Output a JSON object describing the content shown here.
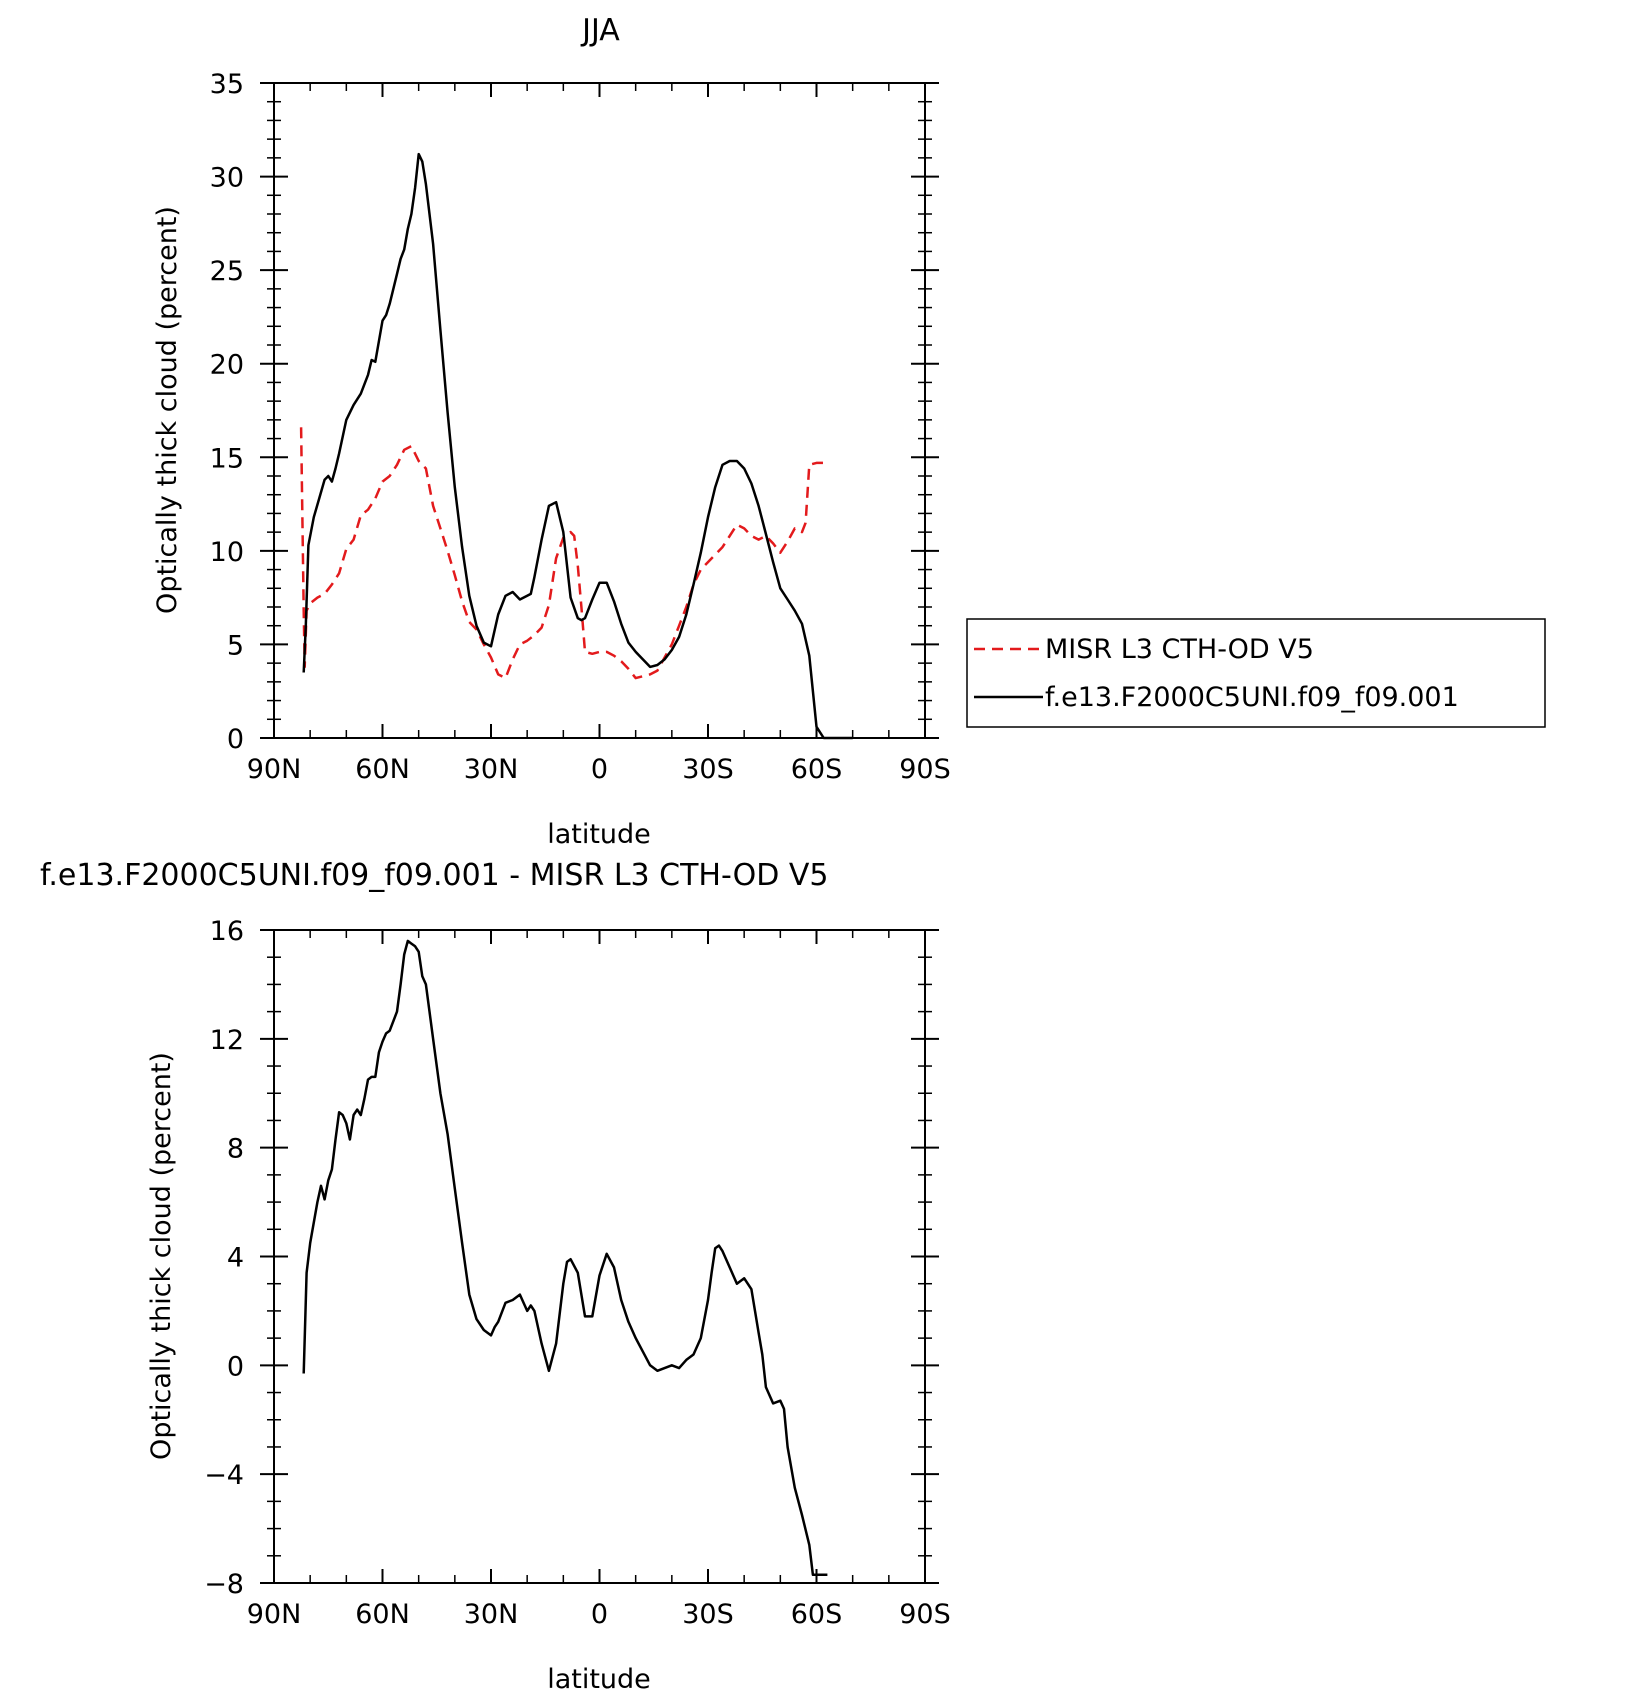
{
  "chart_data": [
    {
      "type": "line",
      "title": "JJA",
      "xlabel": "latitude",
      "ylabel": "Optically thick cloud (percent)",
      "xlim": [
        90,
        -90
      ],
      "ylim": [
        0,
        35
      ],
      "x_ticks": [
        90,
        60,
        30,
        0,
        -30,
        -60,
        -90
      ],
      "x_tick_labels": [
        "90N",
        "60N",
        "30N",
        "0",
        "30S",
        "60S",
        "90S"
      ],
      "y_ticks": [
        0,
        5,
        10,
        15,
        20,
        25,
        30,
        35
      ],
      "y_tick_labels": [
        "0",
        "5",
        "10",
        "15",
        "20",
        "25",
        "30",
        "35"
      ],
      "legend_position": "right",
      "series": [
        {
          "name": "MISR L3 CTH-OD V5",
          "color": "#e31a1c",
          "dash": "dashed",
          "x": [
            82.5,
            81.8,
            81.5,
            81,
            80,
            78,
            76,
            74,
            72,
            70,
            68,
            66,
            64,
            62,
            60,
            58,
            56,
            54,
            52,
            50,
            48,
            46,
            44,
            42,
            40,
            38,
            36,
            34,
            32,
            30,
            28,
            26,
            24,
            22,
            20,
            18,
            16,
            14,
            12,
            10,
            8,
            7,
            6,
            5,
            4,
            2,
            0,
            -2,
            -4,
            -6,
            -8,
            -10,
            -12,
            -14,
            -16,
            -18,
            -20,
            -22,
            -24,
            -26,
            -28,
            -30,
            -32,
            -34,
            -36,
            -38,
            -40,
            -42,
            -44,
            -46,
            -48,
            -50,
            -52,
            -54,
            -56,
            -57,
            -58,
            -60,
            -61,
            -62,
            -63
          ],
          "values": [
            16.6,
            6.8,
            3.8,
            6.8,
            7.2,
            7.5,
            7.7,
            8.2,
            8.8,
            10.1,
            10.6,
            11.9,
            12.2,
            12.8,
            13.7,
            14.0,
            14.6,
            15.4,
            15.6,
            14.8,
            14.4,
            12.4,
            11.2,
            10.0,
            8.7,
            7.3,
            6.2,
            5.8,
            5.0,
            4.3,
            3.4,
            3.2,
            4.2,
            5.0,
            5.2,
            5.5,
            5.9,
            7.1,
            9.6,
            10.7,
            11.0,
            10.8,
            9.2,
            7.0,
            4.6,
            4.5,
            4.6,
            4.6,
            4.4,
            4.1,
            3.7,
            3.2,
            3.3,
            3.4,
            3.6,
            4.3,
            5.0,
            6.0,
            7.0,
            8.2,
            9.0,
            9.4,
            9.8,
            10.2,
            10.8,
            11.4,
            11.2,
            10.8,
            10.6,
            10.8,
            10.4,
            9.9,
            10.5,
            11.2,
            11.0,
            11.5,
            14.6,
            14.7,
            14.7,
            14.7,
            14.7
          ]
        },
        {
          "name": "f.e13.F2000C5UNI.f09_f09.001",
          "color": "#000000",
          "dash": "solid",
          "x": [
            81.8,
            81.2,
            80.5,
            79,
            77.5,
            76,
            75,
            74,
            73,
            72,
            70,
            68,
            67,
            66,
            64,
            63,
            62,
            60,
            59,
            58,
            56,
            55,
            54,
            53,
            52,
            51,
            50,
            49,
            48,
            46,
            44,
            42,
            40,
            38,
            36,
            34,
            32,
            30,
            28,
            26,
            24,
            22,
            20,
            19,
            18,
            16,
            14,
            12,
            10,
            8,
            6,
            5,
            4,
            2,
            0,
            -2,
            -4,
            -6,
            -8,
            -10,
            -12,
            -14,
            -16,
            -18,
            -20,
            -22,
            -24,
            -26,
            -28,
            -30,
            -32,
            -34,
            -36,
            -38,
            -40,
            -42,
            -44,
            -46,
            -48,
            -50,
            -52,
            -54,
            -56,
            -58,
            -60,
            -62,
            -64,
            -66,
            -68,
            -70
          ],
          "values": [
            3.5,
            6.0,
            10.3,
            11.8,
            12.8,
            13.8,
            14.0,
            13.7,
            14.4,
            15.2,
            17.0,
            17.8,
            18.1,
            18.4,
            19.4,
            20.2,
            20.1,
            22.3,
            22.6,
            23.2,
            24.8,
            25.6,
            26.1,
            27.2,
            28.0,
            29.4,
            31.2,
            30.8,
            29.6,
            26.4,
            21.8,
            17.4,
            13.4,
            10.2,
            7.6,
            6.0,
            5.1,
            4.9,
            6.6,
            7.6,
            7.8,
            7.4,
            7.6,
            7.7,
            8.6,
            10.6,
            12.4,
            12.6,
            11.0,
            7.5,
            6.4,
            6.3,
            6.4,
            7.4,
            8.3,
            8.3,
            7.3,
            6.1,
            5.1,
            4.6,
            4.2,
            3.8,
            3.9,
            4.2,
            4.7,
            5.4,
            6.6,
            8.2,
            9.9,
            11.8,
            13.4,
            14.6,
            14.8,
            14.8,
            14.4,
            13.6,
            12.4,
            10.9,
            9.4,
            8.0,
            7.4,
            6.8,
            6.1,
            4.4,
            0.6,
            0.0,
            0.0,
            0.0,
            0.0,
            0.0
          ]
        }
      ]
    },
    {
      "type": "line",
      "title": "f.e13.F2000C5UNI.f09_f09.001 - MISR L3 CTH-OD V5",
      "xlabel": "latitude",
      "ylabel": "Optically thick cloud (percent)",
      "xlim": [
        90,
        -90
      ],
      "ylim": [
        -8,
        16
      ],
      "x_ticks": [
        90,
        60,
        30,
        0,
        -30,
        -60,
        -90
      ],
      "x_tick_labels": [
        "90N",
        "60N",
        "30N",
        "0",
        "30S",
        "60S",
        "90S"
      ],
      "y_ticks": [
        -8,
        -4,
        0,
        4,
        8,
        12,
        16
      ],
      "y_tick_labels": [
        "−8",
        "−4",
        "0",
        "4",
        "8",
        "12",
        "16"
      ],
      "series": [
        {
          "color": "#000000",
          "dash": "solid",
          "x": [
            81.8,
            81,
            80,
            78,
            77,
            76,
            75,
            74,
            73,
            72,
            71,
            70,
            69,
            68,
            67,
            66,
            65,
            64,
            63,
            62,
            61,
            60,
            59,
            58,
            56,
            55,
            54,
            53,
            52,
            51,
            50,
            49,
            48,
            47,
            46,
            44,
            42,
            40,
            38,
            36,
            34,
            32,
            30,
            29,
            28,
            26,
            24,
            22,
            20,
            19,
            18,
            16,
            14,
            12,
            10,
            9,
            8,
            6,
            4,
            2,
            0,
            -2,
            -4,
            -6,
            -8,
            -10,
            -12,
            -14,
            -16,
            -18,
            -20,
            -22,
            -24,
            -26,
            -28,
            -30,
            -31,
            -32,
            -33,
            -34,
            -36,
            -38,
            -40,
            -42,
            -43,
            -44,
            -45,
            -46,
            -48,
            -50,
            -51,
            -52,
            -54,
            -56,
            -58,
            -59,
            -60,
            -61,
            -62,
            -63
          ],
          "values": [
            -0.3,
            3.4,
            4.5,
            6.0,
            6.6,
            6.1,
            6.8,
            7.2,
            8.3,
            9.3,
            9.2,
            8.9,
            8.3,
            9.2,
            9.4,
            9.2,
            9.8,
            10.5,
            10.6,
            10.6,
            11.5,
            11.9,
            12.2,
            12.3,
            13.0,
            14.0,
            15.1,
            15.6,
            15.5,
            15.4,
            15.2,
            14.3,
            14.0,
            13.0,
            12.0,
            10.0,
            8.5,
            6.5,
            4.5,
            2.6,
            1.7,
            1.3,
            1.1,
            1.4,
            1.6,
            2.3,
            2.4,
            2.6,
            2.0,
            2.2,
            2.0,
            0.8,
            -0.2,
            0.8,
            3.0,
            3.8,
            3.9,
            3.4,
            1.8,
            1.8,
            3.3,
            4.1,
            3.6,
            2.4,
            1.6,
            1.0,
            0.5,
            0.0,
            -0.2,
            -0.1,
            0.0,
            -0.1,
            0.2,
            0.4,
            1.0,
            2.4,
            3.4,
            4.3,
            4.4,
            4.2,
            3.6,
            3.0,
            3.2,
            2.8,
            2.0,
            1.2,
            0.4,
            -0.8,
            -1.4,
            -1.3,
            -1.6,
            -3.0,
            -4.5,
            -5.5,
            -6.6,
            -7.7,
            -7.7,
            -7.7,
            -7.7,
            -7.7
          ]
        }
      ]
    }
  ]
}
